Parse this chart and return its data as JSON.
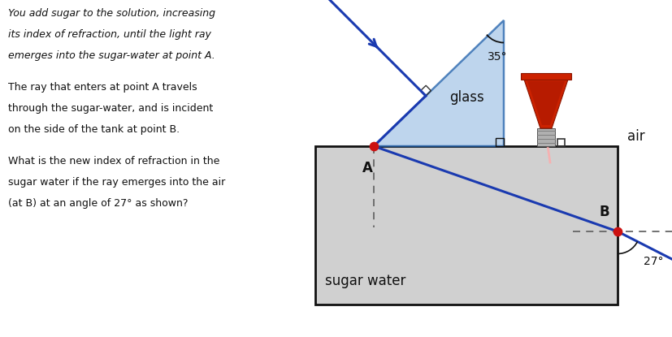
{
  "text_block": [
    "You add sugar to the solution, increasing",
    "its index of refraction, until the light ray",
    "emerges into the sugar-water at point A.",
    "",
    "The ray that enters at point A travels",
    "through the sugar-water, and is incident",
    "on the side of the tank at point B.",
    "",
    "What is the new index of refraction in the",
    "sugar water if the ray emerges into the air",
    "(at B) at an angle of 27° as shown?"
  ],
  "text_italic_lines": [
    0,
    1,
    2
  ],
  "bg_color": "#ffffff",
  "glass_color": "#a8c8e8",
  "tank_top_color": "#c8d8e8",
  "tank_body_color": "#d0d0d0",
  "tank_edge_color": "#111111",
  "ray_color": "#1a3ab0",
  "ray_lw": 2.2,
  "point_color": "#cc1111",
  "point_size": 55,
  "angle_35_label": "35°",
  "angle_27_label": "27°",
  "glass_label": "glass",
  "air_label": "air",
  "A_label": "A",
  "B_label": "B",
  "sugar_water_label": "sugar water",
  "dashed_color": "#666666",
  "dashed_lw": 1.3,
  "funnel_red": "#cc2200",
  "funnel_dark_red": "#8b1500",
  "metal_color": "#aaaaaa",
  "metal_dark": "#666666"
}
